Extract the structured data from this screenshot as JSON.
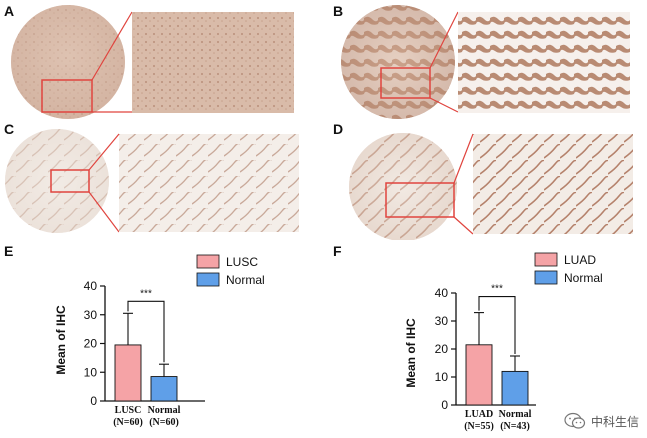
{
  "panels": {
    "a": "A",
    "b": "B",
    "c": "C",
    "d": "D",
    "e": "E",
    "f": "F"
  },
  "colors": {
    "tumor_bar": "#f5a3a6",
    "normal_bar": "#5f9fe8",
    "zoom_box": "#e0443e",
    "stain_brown": "#c8a38f",
    "stain_pale": "#ece3dc"
  },
  "watermark": {
    "icon": "wechat-icon",
    "text": "中科生信"
  },
  "chart_data": [
    {
      "panel": "E",
      "type": "bar",
      "ylabel": "Mean of IHC",
      "ylim": [
        0,
        40
      ],
      "yticks": [
        0,
        10,
        20,
        30,
        40
      ],
      "categories": [
        "LUSC\n(N=60)",
        "Normal\n(N=60)"
      ],
      "category_lines": [
        [
          "LUSC",
          "(N=60)"
        ],
        [
          "Normal",
          "(N=60)"
        ]
      ],
      "values": [
        19.5,
        8.5
      ],
      "errors": [
        11.0,
        4.3
      ],
      "legend": [
        "LUSC",
        "Normal"
      ],
      "legend_position": "top-right",
      "significance": "***",
      "grid": false
    },
    {
      "panel": "F",
      "type": "bar",
      "ylabel": "Mean of IHC",
      "ylim": [
        0,
        40
      ],
      "yticks": [
        0,
        10,
        20,
        30,
        40
      ],
      "categories": [
        "LUAD\n(N=55)",
        "Normal\n(N=43)"
      ],
      "category_lines": [
        [
          "LUAD",
          "(N=55)"
        ],
        [
          "Normal",
          "(N=43)"
        ]
      ],
      "values": [
        21.5,
        12.0
      ],
      "errors": [
        11.5,
        5.5
      ],
      "legend": [
        "LUAD",
        "Normal"
      ],
      "legend_position": "top-right",
      "significance": "***",
      "grid": false
    }
  ]
}
